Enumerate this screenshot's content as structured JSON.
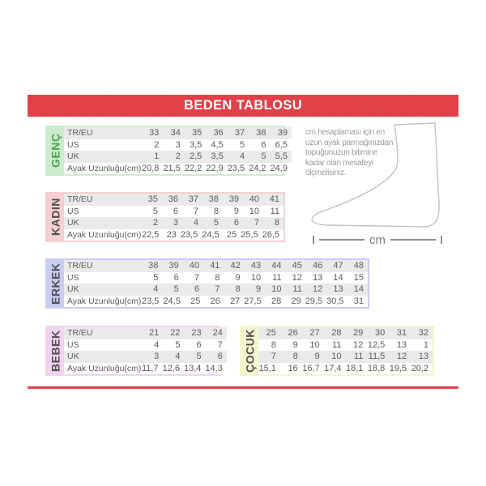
{
  "header": {
    "title": "BEDEN TABLOSU",
    "bar_color": "#e6414a"
  },
  "tables": [
    {
      "id": "genc",
      "label": "GENÇ",
      "frame_color": "#cdeccd",
      "label_text_color": "#4f9f55",
      "row_headers": [
        "TR/EU",
        "US",
        "UK",
        "Ayak Uzunluğu(cm)"
      ],
      "rows": [
        [
          "33",
          "34",
          "35",
          "36",
          "37",
          "38",
          "39"
        ],
        [
          "2",
          "3",
          "3,5",
          "4,5",
          "5",
          "6",
          "6,5"
        ],
        [
          "1",
          "2",
          "2,5",
          "3,5",
          "4",
          "5",
          "5,5"
        ],
        [
          "20,8",
          "21,5",
          "22,2",
          "22,9",
          "23,5",
          "24,2",
          "24,9"
        ]
      ]
    },
    {
      "id": "kadin",
      "label": "KADIN",
      "frame_color": "#f6d0d0",
      "label_text_color": "#4f4f4f",
      "row_headers": [
        "TR/EU",
        "US",
        "UK",
        "Ayak Uzunluğu(cm)"
      ],
      "rows": [
        [
          "35",
          "36",
          "37",
          "38",
          "39",
          "40",
          "41"
        ],
        [
          "5",
          "6",
          "7",
          "8",
          "9",
          "10",
          "11"
        ],
        [
          "2",
          "3",
          "4",
          "5",
          "6",
          "7",
          "8"
        ],
        [
          "22,5",
          "23",
          "23,5",
          "24,5",
          "25",
          "25,5",
          "26,5"
        ]
      ]
    },
    {
      "id": "erkek",
      "label": "ERKEK",
      "frame_color": "#c9cdf2",
      "label_text_color": "#4f4f4f",
      "row_headers": [
        "TR/EU",
        "US",
        "UK",
        "Ayak Uzunluğu(cm)"
      ],
      "rows": [
        [
          "38",
          "39",
          "40",
          "41",
          "42",
          "43",
          "44",
          "45",
          "46",
          "47",
          "48"
        ],
        [
          "5",
          "6",
          "7",
          "8",
          "9",
          "10",
          "11",
          "12",
          "13",
          "14",
          "15"
        ],
        [
          "4",
          "5",
          "6",
          "7",
          "8",
          "9",
          "10",
          "11",
          "12",
          "13",
          "14"
        ],
        [
          "23,5",
          "24,5",
          "25",
          "26",
          "27",
          "27,5",
          "28",
          "29",
          "29,5",
          "30,5",
          "31"
        ]
      ]
    },
    {
      "id": "bebek",
      "label": "BEBEK",
      "frame_color": "#f1d3f1",
      "label_text_color": "#4f4f4f",
      "row_headers": [
        "TR/EU",
        "US",
        "UK",
        "Ayak Uzunluğu(cm)"
      ],
      "rows": [
        [
          "21",
          "22",
          "23",
          "24"
        ],
        [
          "4",
          "5",
          "6",
          "7"
        ],
        [
          "3",
          "4",
          "5",
          "6"
        ],
        [
          "11,7",
          "12,6",
          "13,4",
          "14,3"
        ]
      ]
    },
    {
      "id": "cocuk",
      "label": "ÇOCUK",
      "frame_color": "#f5f5cf",
      "label_text_color": "#4f4f4f",
      "rows": [
        [
          "25",
          "26",
          "27",
          "28",
          "29",
          "30",
          "31",
          "32"
        ],
        [
          "8",
          "9",
          "10",
          "11",
          "12",
          "12,5",
          "13",
          "1"
        ],
        [
          "7",
          "8",
          "9",
          "10",
          "11",
          "11,5",
          "12",
          "13"
        ],
        [
          "15,1",
          "16",
          "16,7",
          "17,4",
          "18,1",
          "18,8",
          "19,5",
          "20,2"
        ]
      ]
    }
  ],
  "note": {
    "lines": [
      "cm hesaplaması için en",
      "uzun ayak parmağınızdan",
      "topuğunuzun bitimine",
      "kadar olan mesafeyi",
      "ölçmelisiniz."
    ]
  },
  "measure": {
    "label": "cm"
  },
  "colors": {
    "row_alt": "#eaeaea",
    "table_text": "#5c5c5c",
    "note_text": "#9b9b9b",
    "accent_red": "#e6414a"
  }
}
